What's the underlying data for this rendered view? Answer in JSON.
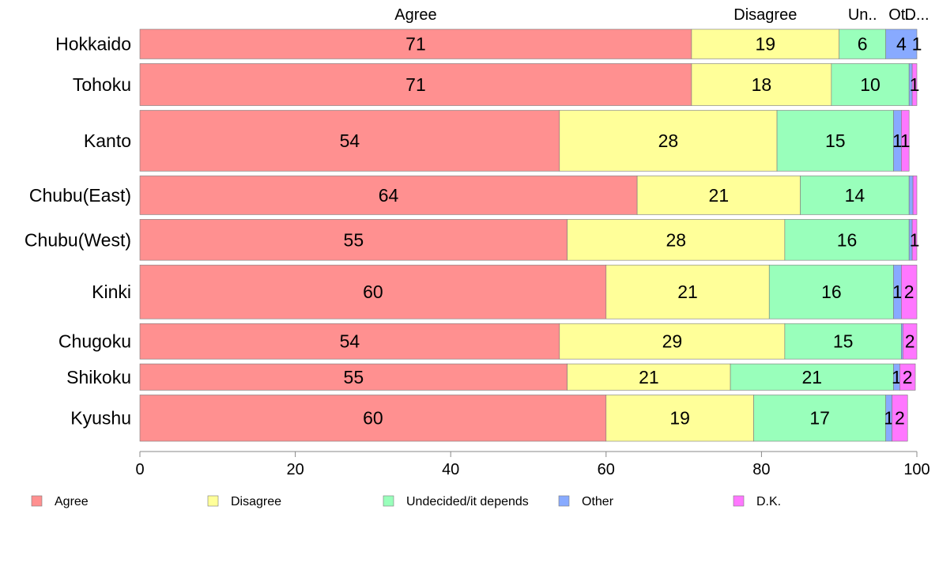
{
  "chart_data": {
    "type": "bar",
    "orientation": "horizontal",
    "stacked": true,
    "categories": [
      "Hokkaido",
      "Tohoku",
      "Kanto",
      "Chubu(East)",
      "Chubu(West)",
      "Kinki",
      "Chugoku",
      "Shikoku",
      "Kyushu"
    ],
    "bar_widths": [
      0.55,
      0.78,
      1.13,
      0.72,
      0.76,
      1.0,
      0.66,
      0.49,
      0.86
    ],
    "series": [
      {
        "name": "Agree",
        "color": "#ff9090",
        "values": [
          71,
          71,
          54,
          64,
          55,
          60,
          54,
          55,
          60
        ]
      },
      {
        "name": "Disagree",
        "color": "#ffff99",
        "values": [
          19,
          18,
          28,
          21,
          28,
          21,
          29,
          21,
          19
        ]
      },
      {
        "name": "Undecided/it depends",
        "color": "#99ffbb",
        "values": [
          6,
          10,
          15,
          14,
          16,
          16,
          15,
          21,
          17
        ]
      },
      {
        "name": "Other",
        "color": "#88aaff",
        "values": [
          4,
          0.4,
          1,
          0.5,
          0.4,
          1,
          0.2,
          0.8,
          0.8
        ]
      },
      {
        "name": "D.K.",
        "color": "#ff77ff",
        "values": [
          1,
          1,
          1,
          0.5,
          1,
          2,
          2,
          2,
          2
        ]
      }
    ],
    "data_labels": [
      [
        "71",
        "19",
        "6",
        "4",
        "1"
      ],
      [
        "71",
        "18",
        "10",
        "",
        "1"
      ],
      [
        "54",
        "28",
        "15",
        "1",
        "1"
      ],
      [
        "64",
        "21",
        "14",
        "",
        ""
      ],
      [
        "55",
        "28",
        "16",
        "",
        "1"
      ],
      [
        "60",
        "21",
        "16",
        "1",
        "2"
      ],
      [
        "54",
        "29",
        "15",
        "",
        "2"
      ],
      [
        "55",
        "21",
        "21",
        "1",
        "2"
      ],
      [
        "60",
        "19",
        "17",
        "1",
        "2"
      ]
    ],
    "top_labels": [
      "Agree",
      "Disagree",
      "Un..",
      "Ot..",
      "D..."
    ],
    "xlim": [
      0,
      100
    ],
    "xticks": [
      "0",
      "20",
      "40",
      "60",
      "80",
      "100"
    ],
    "xlabel": "",
    "ylabel": "",
    "title": "",
    "grid": false,
    "legend_position": "bottom"
  }
}
